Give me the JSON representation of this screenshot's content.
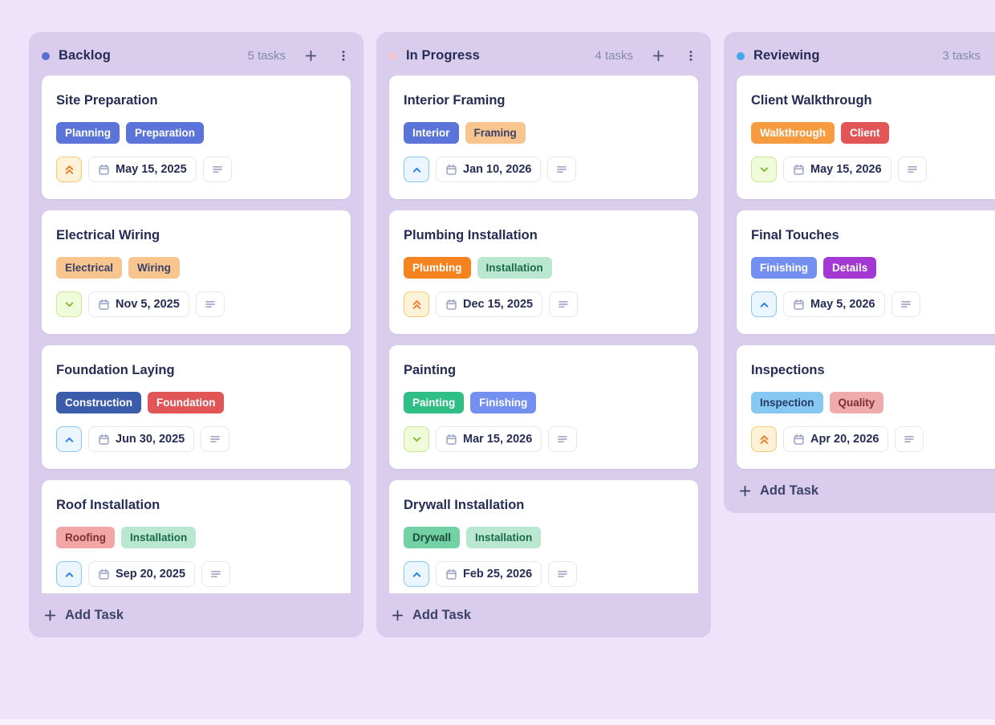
{
  "board": {
    "background": "#efe3fb",
    "column_background": "#d9ccec",
    "add_task_label": "Add Task"
  },
  "tag_palette": {
    "blue": {
      "bg": "#5b74d9",
      "text": "#ffffff"
    },
    "peach": {
      "bg": "#f8c58f",
      "text": "#3b406b"
    },
    "navy": {
      "bg": "#3b5cab",
      "text": "#ffffff"
    },
    "red": {
      "bg": "#e25556",
      "text": "#ffffff"
    },
    "orange": {
      "bg": "#f5831f",
      "text": "#ffffff"
    },
    "orange_medium": {
      "bg": "#f79b40",
      "text": "#ffffff"
    },
    "mint": {
      "bg": "#b9e7d0",
      "text": "#1b6a4c"
    },
    "mint_medium": {
      "bg": "#72d2a6",
      "text": "#1d4a38"
    },
    "rose": {
      "bg": "#f2a6a6",
      "text": "#7c3030"
    },
    "green": {
      "bg": "#2fbe85",
      "text": "#ffffff"
    },
    "periwinkle": {
      "bg": "#7390f1",
      "text": "#ffffff"
    },
    "purple": {
      "bg": "#a438d3",
      "text": "#ffffff"
    },
    "sky": {
      "bg": "#86c8f2",
      "text": "#243b66"
    },
    "rose_light": {
      "bg": "#efaaab",
      "text": "#7c3030"
    }
  },
  "priorities": {
    "high": {
      "bg": "#eaf5fd",
      "border": "#86c8ef",
      "icon_color": "#2a7ee2",
      "icon": "chevron-up-icon"
    },
    "urgent": {
      "bg": "#fdf2d7",
      "border": "#f3cb70",
      "icon_color": "#ee7d2e",
      "icon": "chevrons-up-icon"
    },
    "low": {
      "bg": "#f0fbda",
      "border": "#c9e897",
      "icon_color": "#84bc3b",
      "icon": "chevron-down-icon"
    }
  },
  "columns": [
    {
      "title": "Backlog",
      "count_label": "5 tasks",
      "dot_color": "#5d6cd0",
      "cards": [
        {
          "title": "Site Preparation",
          "tags": [
            {
              "label": "Planning",
              "palette": "blue"
            },
            {
              "label": "Preparation",
              "palette": "blue"
            }
          ],
          "priority": "urgent",
          "date": "May 15, 2025",
          "clipped": false
        },
        {
          "title": "Electrical Wiring",
          "tags": [
            {
              "label": "Electrical",
              "palette": "peach"
            },
            {
              "label": "Wiring",
              "palette": "peach"
            }
          ],
          "priority": "low",
          "date": "Nov 5, 2025",
          "clipped": false
        },
        {
          "title": "Foundation Laying",
          "tags": [
            {
              "label": "Construction",
              "palette": "navy"
            },
            {
              "label": "Foundation",
              "palette": "red"
            }
          ],
          "priority": "high",
          "date": "Jun 30, 2025",
          "clipped": false
        },
        {
          "title": "Roof Installation",
          "tags": [
            {
              "label": "Roofing",
              "palette": "rose"
            },
            {
              "label": "Installation",
              "palette": "mint"
            }
          ],
          "priority": "high",
          "date": "Sep 20, 2025",
          "clipped": true
        }
      ]
    },
    {
      "title": "In Progress",
      "count_label": "4 tasks",
      "dot_color": "#f2c4cc",
      "cards": [
        {
          "title": "Interior Framing",
          "tags": [
            {
              "label": "Interior",
              "palette": "blue"
            },
            {
              "label": "Framing",
              "palette": "peach"
            }
          ],
          "priority": "high",
          "date": "Jan 10, 2026",
          "clipped": false
        },
        {
          "title": "Plumbing Installation",
          "tags": [
            {
              "label": "Plumbing",
              "palette": "orange"
            },
            {
              "label": "Installation",
              "palette": "mint"
            }
          ],
          "priority": "urgent",
          "date": "Dec 15, 2025",
          "clipped": false
        },
        {
          "title": "Painting",
          "tags": [
            {
              "label": "Painting",
              "palette": "green"
            },
            {
              "label": "Finishing",
              "palette": "periwinkle"
            }
          ],
          "priority": "low",
          "date": "Mar 15, 2026",
          "clipped": false
        },
        {
          "title": "Drywall Installation",
          "tags": [
            {
              "label": "Drywall",
              "palette": "mint_medium"
            },
            {
              "label": "Installation",
              "palette": "mint"
            }
          ],
          "priority": "high",
          "date": "Feb 25, 2026",
          "clipped": true
        }
      ]
    },
    {
      "title": "Reviewing",
      "count_label": "3 tasks",
      "dot_color": "#45a7ea",
      "cards": [
        {
          "title": "Client Walkthrough",
          "tags": [
            {
              "label": "Walkthrough",
              "palette": "orange_medium"
            },
            {
              "label": "Client",
              "palette": "red"
            }
          ],
          "priority": "low",
          "date": "May 15, 2026",
          "clipped": false
        },
        {
          "title": "Final Touches",
          "tags": [
            {
              "label": "Finishing",
              "palette": "periwinkle"
            },
            {
              "label": "Details",
              "palette": "purple"
            }
          ],
          "priority": "high",
          "date": "May 5, 2026",
          "clipped": false
        },
        {
          "title": "Inspections",
          "tags": [
            {
              "label": "Inspection",
              "palette": "sky"
            },
            {
              "label": "Quality",
              "palette": "rose_light"
            }
          ],
          "priority": "urgent",
          "date": "Apr 20, 2026",
          "clipped": false
        }
      ]
    }
  ]
}
